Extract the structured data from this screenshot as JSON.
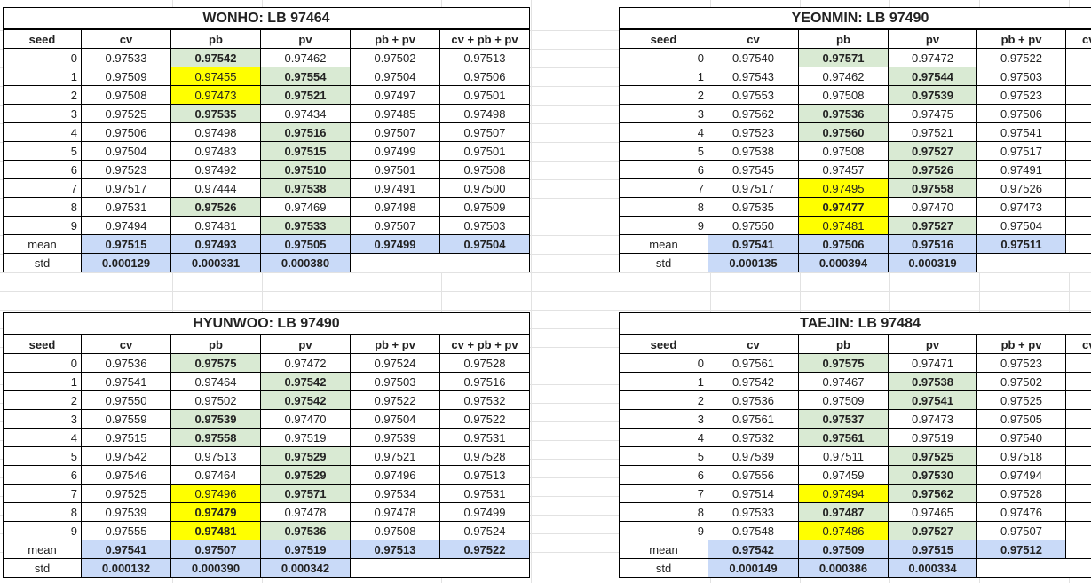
{
  "tables": [
    {
      "title": "WONHO: LB 97464",
      "columns": [
        "seed",
        "cv",
        "pb",
        "pv",
        "pb + pv",
        "cv + pb + pv"
      ],
      "rows": [
        {
          "seed": 0,
          "values": [
            "0.97533",
            "0.97542",
            "0.97462",
            "0.97502",
            "0.97513"
          ]
        },
        {
          "seed": 1,
          "values": [
            "0.97509",
            "0.97455",
            "0.97554",
            "0.97504",
            "0.97506"
          ]
        },
        {
          "seed": 2,
          "values": [
            "0.97508",
            "0.97473",
            "0.97521",
            "0.97497",
            "0.97501"
          ]
        },
        {
          "seed": 3,
          "values": [
            "0.97525",
            "0.97535",
            "0.97434",
            "0.97485",
            "0.97498"
          ]
        },
        {
          "seed": 4,
          "values": [
            "0.97506",
            "0.97498",
            "0.97516",
            "0.97507",
            "0.97507"
          ]
        },
        {
          "seed": 5,
          "values": [
            "0.97504",
            "0.97483",
            "0.97515",
            "0.97499",
            "0.97501"
          ]
        },
        {
          "seed": 6,
          "values": [
            "0.97523",
            "0.97492",
            "0.97510",
            "0.97501",
            "0.97508"
          ]
        },
        {
          "seed": 7,
          "values": [
            "0.97517",
            "0.97444",
            "0.97538",
            "0.97491",
            "0.97500"
          ]
        },
        {
          "seed": 8,
          "values": [
            "0.97531",
            "0.97526",
            "0.97469",
            "0.97498",
            "0.97509"
          ]
        },
        {
          "seed": 9,
          "values": [
            "0.97494",
            "0.97481",
            "0.97533",
            "0.97507",
            "0.97503"
          ]
        }
      ],
      "mean": {
        "label": "mean",
        "values": [
          "0.97515",
          "0.97493",
          "0.97505",
          "0.97499",
          "0.97504"
        ]
      },
      "std": {
        "label": "std",
        "values": [
          "0.000129",
          "0.000331",
          "0.000380"
        ]
      }
    },
    {
      "title": "YEONMIN: LB 97490",
      "columns": [
        "seed",
        "cv",
        "pb",
        "pv",
        "pb + pv",
        "cv"
      ],
      "rows": [
        {
          "seed": 0,
          "values": [
            "0.97540",
            "0.97571",
            "0.97472",
            "0.97522"
          ]
        },
        {
          "seed": 1,
          "values": [
            "0.97543",
            "0.97462",
            "0.97544",
            "0.97503"
          ]
        },
        {
          "seed": 2,
          "values": [
            "0.97553",
            "0.97508",
            "0.97539",
            "0.97523"
          ]
        },
        {
          "seed": 3,
          "values": [
            "0.97562",
            "0.97536",
            "0.97475",
            "0.97506"
          ]
        },
        {
          "seed": 4,
          "values": [
            "0.97523",
            "0.97560",
            "0.97521",
            "0.97541"
          ]
        },
        {
          "seed": 5,
          "values": [
            "0.97538",
            "0.97508",
            "0.97527",
            "0.97517"
          ]
        },
        {
          "seed": 6,
          "values": [
            "0.97545",
            "0.97457",
            "0.97526",
            "0.97491"
          ]
        },
        {
          "seed": 7,
          "values": [
            "0.97517",
            "0.97495",
            "0.97558",
            "0.97526"
          ]
        },
        {
          "seed": 8,
          "values": [
            "0.97535",
            "0.97477",
            "0.97470",
            "0.97473"
          ]
        },
        {
          "seed": 9,
          "values": [
            "0.97550",
            "0.97481",
            "0.97527",
            "0.97504"
          ]
        }
      ],
      "mean": {
        "label": "mean",
        "values": [
          "0.97541",
          "0.97506",
          "0.97516",
          "0.97511"
        ]
      },
      "std": {
        "label": "std",
        "values": [
          "0.000135",
          "0.000394",
          "0.000319"
        ]
      }
    },
    {
      "title": "HYUNWOO: LB 97490",
      "columns": [
        "seed",
        "cv",
        "pb",
        "pv",
        "pb + pv",
        "cv + pb + pv"
      ],
      "rows": [
        {
          "seed": 0,
          "values": [
            "0.97536",
            "0.97575",
            "0.97472",
            "0.97524",
            "0.97528"
          ]
        },
        {
          "seed": 1,
          "values": [
            "0.97541",
            "0.97464",
            "0.97542",
            "0.97503",
            "0.97516"
          ]
        },
        {
          "seed": 2,
          "values": [
            "0.97550",
            "0.97502",
            "0.97542",
            "0.97522",
            "0.97532"
          ]
        },
        {
          "seed": 3,
          "values": [
            "0.97559",
            "0.97539",
            "0.97470",
            "0.97504",
            "0.97522"
          ]
        },
        {
          "seed": 4,
          "values": [
            "0.97515",
            "0.97558",
            "0.97519",
            "0.97539",
            "0.97531"
          ]
        },
        {
          "seed": 5,
          "values": [
            "0.97542",
            "0.97513",
            "0.97529",
            "0.97521",
            "0.97528"
          ]
        },
        {
          "seed": 6,
          "values": [
            "0.97546",
            "0.97464",
            "0.97529",
            "0.97496",
            "0.97513"
          ]
        },
        {
          "seed": 7,
          "values": [
            "0.97525",
            "0.97496",
            "0.97571",
            "0.97534",
            "0.97531"
          ]
        },
        {
          "seed": 8,
          "values": [
            "0.97539",
            "0.97479",
            "0.97478",
            "0.97478",
            "0.97499"
          ]
        },
        {
          "seed": 9,
          "values": [
            "0.97555",
            "0.97481",
            "0.97536",
            "0.97508",
            "0.97524"
          ]
        }
      ],
      "mean": {
        "label": "mean",
        "values": [
          "0.97541",
          "0.97507",
          "0.97519",
          "0.97513",
          "0.97522"
        ]
      },
      "std": {
        "label": "std",
        "values": [
          "0.000132",
          "0.000390",
          "0.000342"
        ]
      }
    },
    {
      "title": "TAEJIN: LB 97484",
      "columns": [
        "seed",
        "cv",
        "pb",
        "pv",
        "pb + pv",
        "cv"
      ],
      "rows": [
        {
          "seed": 0,
          "values": [
            "0.97561",
            "0.97575",
            "0.97471",
            "0.97523"
          ]
        },
        {
          "seed": 1,
          "values": [
            "0.97542",
            "0.97467",
            "0.97538",
            "0.97502"
          ]
        },
        {
          "seed": 2,
          "values": [
            "0.97536",
            "0.97509",
            "0.97541",
            "0.97525"
          ]
        },
        {
          "seed": 3,
          "values": [
            "0.97561",
            "0.97537",
            "0.97473",
            "0.97505"
          ]
        },
        {
          "seed": 4,
          "values": [
            "0.97532",
            "0.97561",
            "0.97519",
            "0.97540"
          ]
        },
        {
          "seed": 5,
          "values": [
            "0.97539",
            "0.97511",
            "0.97525",
            "0.97518"
          ]
        },
        {
          "seed": 6,
          "values": [
            "0.97556",
            "0.97459",
            "0.97530",
            "0.97494"
          ]
        },
        {
          "seed": 7,
          "values": [
            "0.97514",
            "0.97494",
            "0.97562",
            "0.97528"
          ]
        },
        {
          "seed": 8,
          "values": [
            "0.97533",
            "0.97487",
            "0.97465",
            "0.97476"
          ]
        },
        {
          "seed": 9,
          "values": [
            "0.97548",
            "0.97486",
            "0.97527",
            "0.97507"
          ]
        }
      ],
      "mean": {
        "label": "mean",
        "values": [
          "0.97542",
          "0.97509",
          "0.97515",
          "0.97512"
        ]
      },
      "std": {
        "label": "std",
        "values": [
          "0.000149",
          "0.000386",
          "0.000334"
        ]
      }
    }
  ]
}
